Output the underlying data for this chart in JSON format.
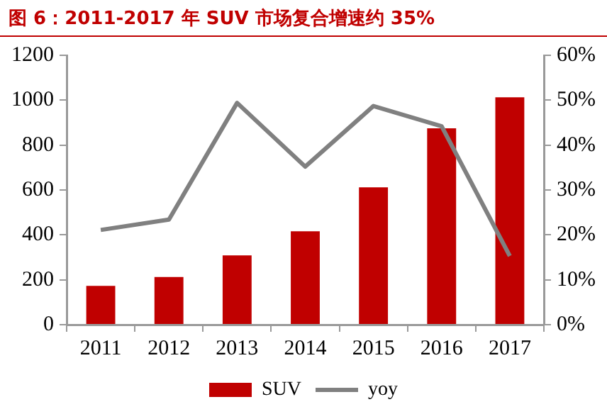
{
  "chart_data": {
    "type": "bar",
    "title": "图 6：2011-2017 年 SUV 市场复合增速约 35%",
    "categories": [
      "2011",
      "2012",
      "2013",
      "2014",
      "2015",
      "2016",
      "2017"
    ],
    "series": [
      {
        "name": "SUV",
        "color": "#c00000",
        "values": [
          173,
          212,
          309,
          416,
          612,
          875,
          1013
        ]
      },
      {
        "name": "yoy",
        "type": "line",
        "axis": "y2",
        "color": "#808080",
        "values": [
          21.1,
          23.4,
          49.4,
          35.2,
          48.7,
          44.2,
          15.3
        ]
      }
    ],
    "ylim": [
      0,
      1200
    ],
    "yticks": [
      0,
      200,
      400,
      600,
      800,
      1000,
      1200
    ],
    "y2lim": [
      0,
      60
    ],
    "y2ticks": [
      {
        "value": 0,
        "label": "0%"
      },
      {
        "value": 10,
        "label": "10%"
      },
      {
        "value": 20,
        "label": "20%"
      },
      {
        "value": 30,
        "label": "30%"
      },
      {
        "value": 40,
        "label": "40%"
      },
      {
        "value": 50,
        "label": "50%"
      },
      {
        "value": 60,
        "label": "60%"
      }
    ],
    "legend": "bottom",
    "marker": "none"
  }
}
